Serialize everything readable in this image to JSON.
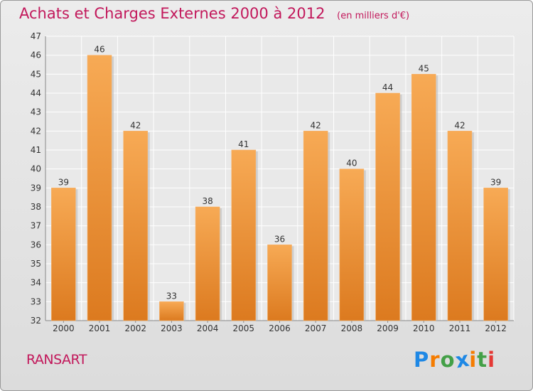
{
  "title": "Achats et Charges Externes 2000 à 2012",
  "subtitle": "(en milliers d'€)",
  "town": "RANSART",
  "logo": {
    "letters": [
      "P",
      "r",
      "o",
      "x",
      "i",
      "t",
      "i"
    ],
    "colors": [
      "#1e88e5",
      "#f57c00",
      "#43a047",
      "#1e88e5",
      "#f57c00",
      "#43a047",
      "#e53935"
    ]
  },
  "chart_data": {
    "type": "bar",
    "categories": [
      "2000",
      "2001",
      "2002",
      "2003",
      "2004",
      "2005",
      "2006",
      "2007",
      "2008",
      "2009",
      "2010",
      "2011",
      "2012"
    ],
    "values": [
      39,
      46,
      42,
      33,
      38,
      41,
      36,
      42,
      40,
      44,
      45,
      42,
      39
    ],
    "ylim": [
      32,
      47
    ],
    "yticks": [
      32,
      33,
      34,
      35,
      36,
      37,
      38,
      39,
      40,
      41,
      42,
      43,
      44,
      45,
      46,
      47
    ],
    "grid": true,
    "bar_color": "#f29a3e"
  }
}
